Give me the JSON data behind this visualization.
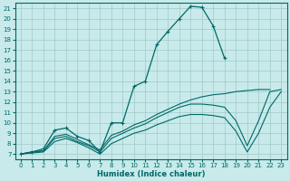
{
  "title": "",
  "xlabel": "Humidex (Indice chaleur)",
  "ylabel": "",
  "bg_color": "#c8eaea",
  "grid_color": "#a0c8c8",
  "line_color": "#006868",
  "xlim": [
    -0.5,
    23.5
  ],
  "ylim": [
    6.5,
    21.5
  ],
  "xticks": [
    0,
    1,
    2,
    3,
    4,
    5,
    6,
    7,
    8,
    9,
    10,
    11,
    12,
    13,
    14,
    15,
    16,
    17,
    18,
    19,
    20,
    21,
    22,
    23
  ],
  "yticks": [
    7,
    8,
    9,
    10,
    11,
    12,
    13,
    14,
    15,
    16,
    17,
    18,
    19,
    20,
    21
  ],
  "series": [
    {
      "x": [
        0,
        1,
        2,
        3,
        4,
        5,
        6,
        7,
        8,
        9,
        10,
        11,
        12,
        13,
        14,
        15,
        16,
        17,
        18
      ],
      "y": [
        7.0,
        7.2,
        7.5,
        9.3,
        9.5,
        8.7,
        8.3,
        7.2,
        10.0,
        10.0,
        13.5,
        14.0,
        17.5,
        18.8,
        20.0,
        21.2,
        21.1,
        19.3,
        16.2
      ],
      "marker": true
    },
    {
      "x": [
        0,
        1,
        2,
        3,
        4,
        5,
        6,
        7,
        8,
        9,
        10,
        11,
        12,
        13,
        14,
        15,
        16,
        17,
        18,
        19,
        20,
        21,
        22
      ],
      "y": [
        7.0,
        7.2,
        7.3,
        8.7,
        8.9,
        8.4,
        7.9,
        7.4,
        8.8,
        9.2,
        9.8,
        10.2,
        10.8,
        11.3,
        11.8,
        12.2,
        12.5,
        12.7,
        12.8,
        13.0,
        13.1,
        13.2,
        13.2
      ],
      "marker": false
    },
    {
      "x": [
        0,
        1,
        2,
        3,
        4,
        5,
        6,
        7,
        8,
        9,
        10,
        11,
        12,
        13,
        14,
        15,
        16,
        17,
        18,
        19,
        20,
        21,
        22,
        23
      ],
      "y": [
        7.0,
        7.2,
        7.3,
        8.5,
        8.7,
        8.2,
        7.8,
        7.2,
        8.5,
        9.0,
        9.5,
        9.9,
        10.5,
        11.0,
        11.5,
        11.8,
        11.8,
        11.7,
        11.5,
        10.2,
        7.8,
        10.2,
        13.0,
        13.2
      ],
      "marker": false
    },
    {
      "x": [
        0,
        1,
        2,
        3,
        4,
        5,
        6,
        7,
        8,
        9,
        10,
        11,
        12,
        13,
        14,
        15,
        16,
        17,
        18,
        19,
        20,
        21,
        22,
        23
      ],
      "y": [
        7.0,
        7.1,
        7.2,
        8.2,
        8.5,
        8.1,
        7.6,
        7.0,
        8.0,
        8.5,
        9.0,
        9.3,
        9.8,
        10.2,
        10.6,
        10.8,
        10.8,
        10.7,
        10.5,
        9.2,
        7.2,
        9.0,
        11.5,
        13.0
      ],
      "marker": false
    }
  ]
}
